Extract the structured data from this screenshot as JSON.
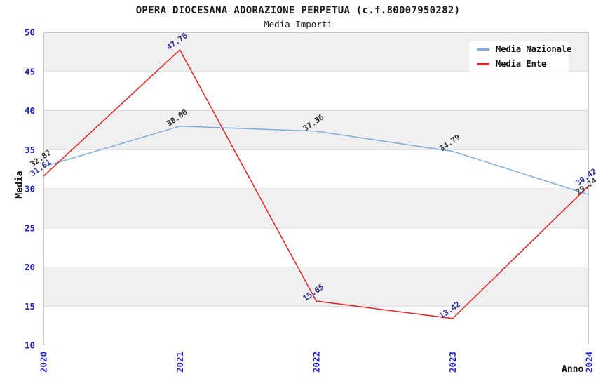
{
  "header": {
    "title": "OPERA DIOCESANA ADORAZIONE PERPETUA (c.f.80007950282)",
    "subtitle": "Media Importi"
  },
  "chart_data": {
    "type": "line",
    "title": "OPERA DIOCESANA ADORAZIONE PERPETUA (c.f.80007950282)",
    "subtitle": "Media Importi",
    "categories": [
      "2020",
      "2021",
      "2022",
      "2023",
      "2024"
    ],
    "series": [
      {
        "name": "Media Nazionale",
        "color": "#7FADDC",
        "label_color": "#333333",
        "values": [
          32.82,
          38.0,
          37.36,
          34.79,
          29.24
        ]
      },
      {
        "name": "Media Ente",
        "color": "#E32222",
        "label_color": "#2E2E99",
        "values": [
          31.61,
          47.76,
          15.65,
          13.42,
          30.42
        ]
      }
    ],
    "xlabel": "Anno",
    "ylabel": "Media",
    "ylim": [
      10,
      50
    ],
    "ytick_step": 5,
    "yticks": [
      10,
      15,
      20,
      25,
      30,
      35,
      40,
      45,
      50
    ],
    "grid": true,
    "legend_position": "top-right",
    "tick_color": "#2222CC",
    "band_colors": [
      "#F0F0F0",
      "#FFFFFF"
    ],
    "gridline_color": "#D8D8D8",
    "border_color": "#C9C9C9",
    "label_rotation_deg": -35,
    "value_decimals": 2
  }
}
